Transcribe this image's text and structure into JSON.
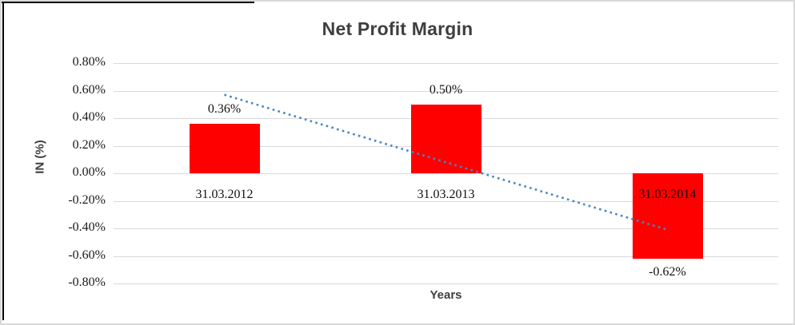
{
  "frame": {
    "border_color": "#d9d9d9",
    "cell_border_color": "#000000",
    "background": "#ffffff"
  },
  "chart_data": {
    "type": "bar",
    "title": "Net Profit Margin",
    "xlabel": "Years",
    "ylabel": "IN (%)",
    "categories": [
      "31.03.2012",
      "31.03.2013",
      "31.03.2014"
    ],
    "values": [
      0.36,
      0.5,
      -0.62
    ],
    "value_labels": [
      "0.36%",
      "0.50%",
      "-0.62%"
    ],
    "ylim": [
      -0.8,
      0.8
    ],
    "ytick_labels": [
      "0.80%",
      "0.60%",
      "0.40%",
      "0.20%",
      "0.00%",
      "-0.20%",
      "-0.40%",
      "-0.60%",
      "-0.80%"
    ],
    "ytick_values": [
      0.8,
      0.6,
      0.4,
      0.2,
      0.0,
      -0.2,
      -0.4,
      -0.6,
      -0.8
    ],
    "grid": true,
    "legend": "none",
    "bar_color": "#ff0000",
    "title_color": "#3f3f3f",
    "gridline_color": "#d9d9d9",
    "trendline": {
      "type": "linear",
      "style": "dotted",
      "color": "#4a84c4",
      "y_start": 0.57,
      "y_end": -0.41
    }
  }
}
